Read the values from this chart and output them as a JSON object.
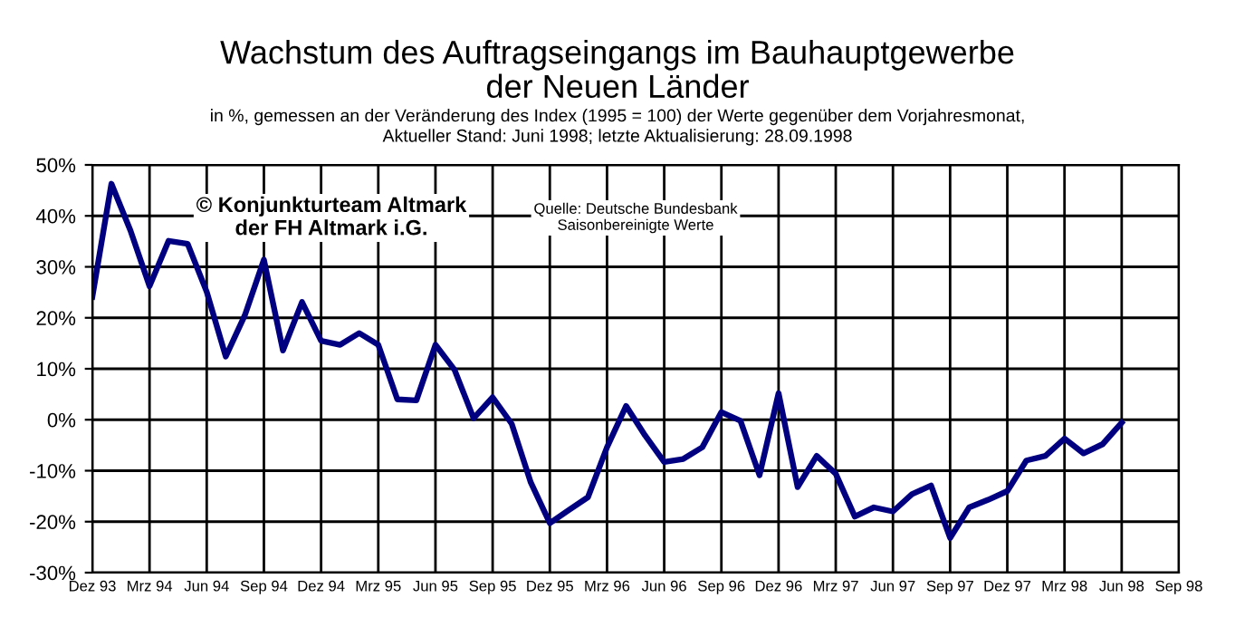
{
  "chart_data": {
    "type": "line",
    "title": "Wachstum des Auftragseingangs im Bauhauptgewerbe\nder Neuen Länder",
    "subtitle": "in %, gemessen an der Veränderung des Index (1995 = 100) der Werte gegenüber dem Vorjahresmonat,\nAktueller Stand: Juni 1998; letzte Aktualisierung: 28.09.1998",
    "annotations": [
      "© Konjunkturteam Altmark\nder FH Altmark i.G.",
      "Quelle: Deutsche Bundesbank\nSaisonbereinigte Werte"
    ],
    "categories": [
      "Dez 93",
      null,
      null,
      "Mrz 94",
      null,
      null,
      "Jun 94",
      null,
      null,
      "Sep 94",
      null,
      null,
      "Dez 94",
      null,
      null,
      "Mrz 95",
      null,
      null,
      "Jun 95",
      null,
      null,
      "Sep 95",
      null,
      null,
      "Dez 95",
      null,
      null,
      "Mrz 96",
      null,
      null,
      "Jun 96",
      null,
      null,
      "Sep 96",
      null,
      null,
      "Dez 96",
      null,
      null,
      "Mrz 97",
      null,
      null,
      "Jun 97",
      null,
      null,
      "Sep 97",
      null,
      null,
      "Dez 97",
      null,
      null,
      "Mrz 98",
      null,
      null,
      "Jun 98",
      null,
      null,
      "Sep 98"
    ],
    "series": [
      {
        "color": "#000080",
        "values": [
          24.1,
          46.3,
          37.1,
          26.2,
          35.1,
          34.5,
          25.1,
          12.4,
          20.5,
          31.4,
          13.6,
          23.1,
          15.5,
          14.7,
          17.0,
          14.7,
          4.0,
          3.8,
          14.7,
          9.8,
          0.3,
          4.4,
          -0.8,
          -12.3,
          -20.3,
          -17.7,
          -15.2,
          -5.4,
          2.7,
          -3.1,
          -8.3,
          -7.7,
          -5.4,
          1.5,
          -0.2,
          -10.9,
          5.2,
          -13.2,
          -7.1,
          -10.6,
          -19.0,
          -17.2,
          -18.0,
          -14.6,
          -12.9,
          -23.2,
          -17.2,
          -15.7,
          -14.0,
          -8.0,
          -7.1,
          -3.7,
          -6.6,
          -4.8,
          -0.6,
          null,
          null,
          null
        ]
      }
    ],
    "ylim": [
      -30,
      50
    ],
    "yticks": [
      {
        "value": -30,
        "label": "-30%"
      },
      {
        "value": -20,
        "label": "-20%"
      },
      {
        "value": -10,
        "label": "-10%"
      },
      {
        "value": 0,
        "label": "0%"
      },
      {
        "value": 10,
        "label": "10%"
      },
      {
        "value": 20,
        "label": "20%"
      },
      {
        "value": 30,
        "label": "30%"
      },
      {
        "value": 40,
        "label": "40%"
      },
      {
        "value": 50,
        "label": "50%"
      }
    ],
    "grid": true,
    "marker": "none",
    "line_style": "solid"
  }
}
